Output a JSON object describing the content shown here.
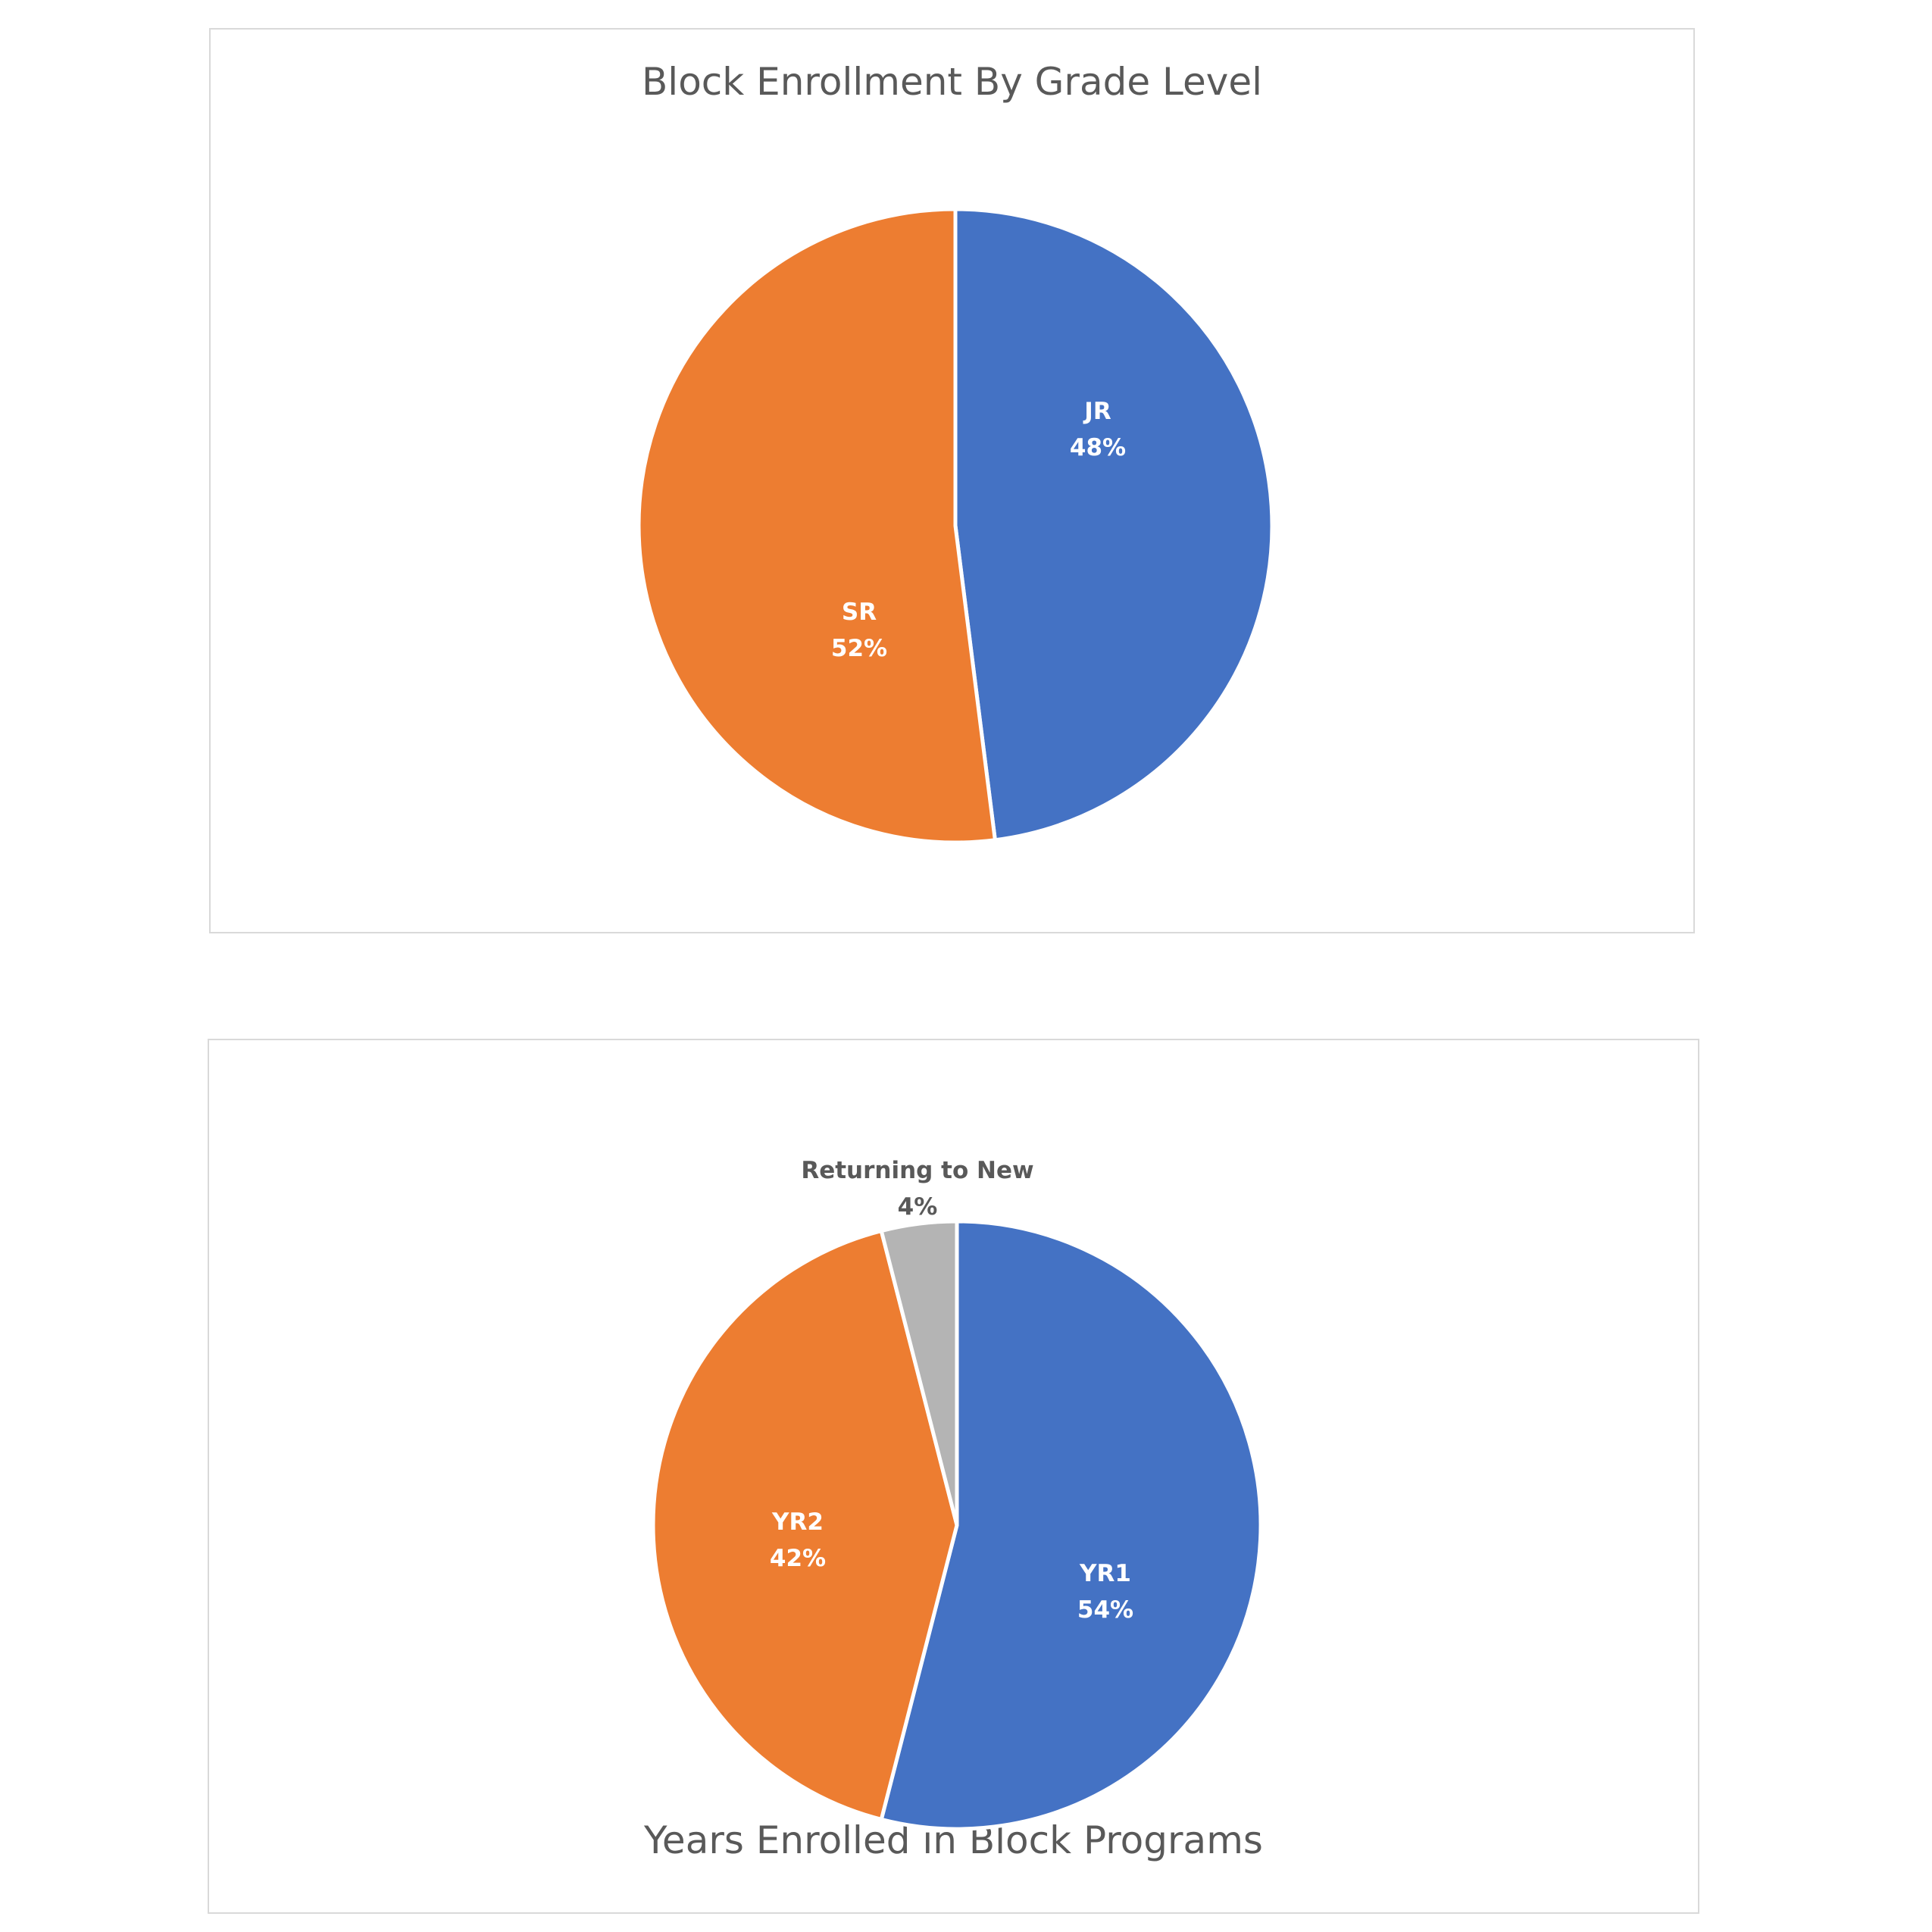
{
  "chart_data": [
    {
      "type": "pie",
      "title": "Block Enrollment By Grade Level",
      "slices": [
        {
          "label": "JR",
          "value": 48,
          "value_label": "48%",
          "color": "#4472C4",
          "label_color": "#FFFFFF"
        },
        {
          "label": "SR",
          "value": 52,
          "value_label": "52%",
          "color": "#ED7D31",
          "label_color": "#FFFFFF"
        }
      ],
      "start_angle": "12 o'clock",
      "direction": "clockwise",
      "legend": "none"
    },
    {
      "type": "pie",
      "title": "Years Enrolled in Block Programs",
      "slices": [
        {
          "label": "YR1",
          "value": 54,
          "value_label": "54%",
          "color": "#4472C4",
          "label_color": "#FFFFFF"
        },
        {
          "label": "YR2",
          "value": 42,
          "value_label": "42%",
          "color": "#ED7D31",
          "label_color": "#FFFFFF"
        },
        {
          "label": "Returning to New",
          "value": 4,
          "value_label": "4%",
          "color": "#B4B4B4",
          "label_color": "#595959"
        }
      ],
      "start_angle": "12 o'clock",
      "direction": "clockwise",
      "legend": "none"
    }
  ]
}
